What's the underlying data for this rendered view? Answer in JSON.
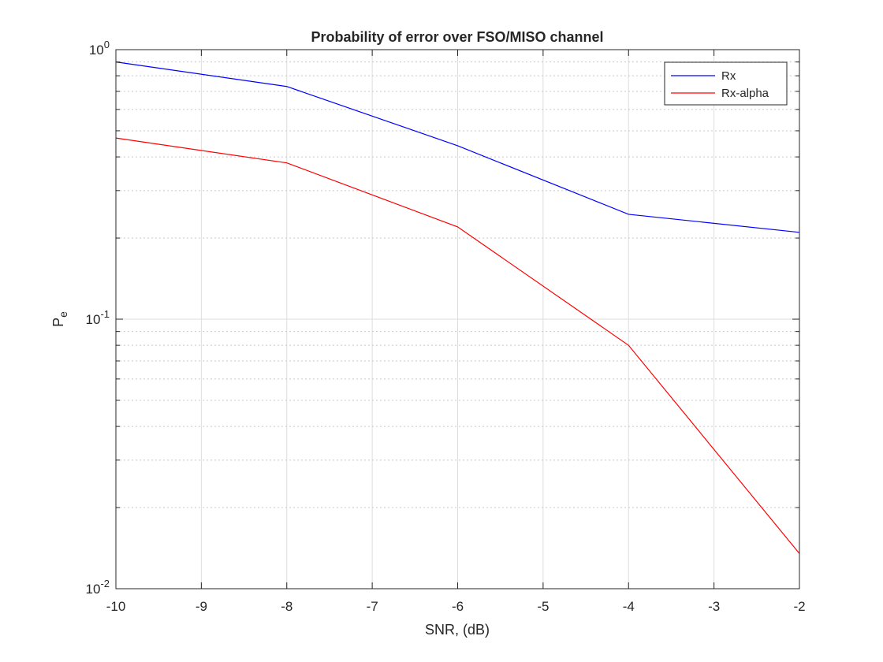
{
  "chart_data": {
    "type": "line",
    "title": "Probability of error over FSO/MISO channel",
    "xlabel": "SNR, (dB)",
    "ylabel_main": "P",
    "ylabel_sub": "e",
    "xlim": [
      -10,
      -2
    ],
    "ylim": [
      0.01,
      1
    ],
    "yscale": "log",
    "grid": true,
    "legend_position": "top-right",
    "x_ticks": [
      -10,
      -9,
      -8,
      -7,
      -6,
      -5,
      -4,
      -3,
      -2
    ],
    "y_ticks": [
      {
        "base": "10",
        "exp": "-2",
        "value": 0.01
      },
      {
        "base": "10",
        "exp": "-1",
        "value": 0.1
      },
      {
        "base": "10",
        "exp": "0",
        "value": 1
      }
    ],
    "x": [
      -10,
      -8,
      -6,
      -4,
      -2
    ],
    "series": [
      {
        "name": "Rx",
        "color": "#0000ff",
        "values": [
          0.9,
          0.73,
          0.44,
          0.245,
          0.21
        ]
      },
      {
        "name": "Rx-alpha",
        "color": "#ff0000",
        "values": [
          0.47,
          0.38,
          0.22,
          0.08,
          0.0135
        ]
      }
    ]
  }
}
